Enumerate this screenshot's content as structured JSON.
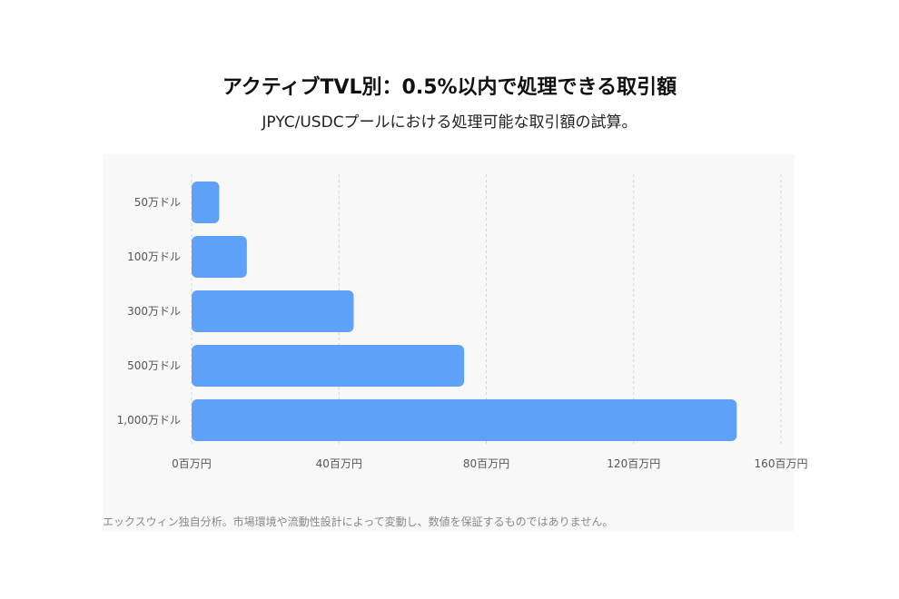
{
  "header": {
    "title": "アクティブTVL別：0.5%以内で処理できる取引額",
    "subtitle": "JPYC/USDCプールにおける処理可能な取引額の試算。"
  },
  "footnote": "エックスウィン独自分析。市場環境や流動性設計によって変動し、数値を保証するものではありません。",
  "colors": {
    "bar": "#5ea1f8",
    "grid": "#d6d6d6",
    "tick_text": "#555555"
  },
  "chart_data": {
    "type": "bar",
    "orientation": "horizontal",
    "categories": [
      "50万ドル",
      "100万ドル",
      "300万ドル",
      "500万ドル",
      "1,000万ドル"
    ],
    "values": [
      7.5,
      15,
      44,
      74,
      148
    ],
    "xlim": [
      0,
      160
    ],
    "xticks": [
      0,
      40,
      80,
      120,
      160
    ],
    "xtick_labels": [
      "0百万円",
      "40百万円",
      "80百万円",
      "120百万円",
      "160百万円"
    ],
    "grid": "vertical dashed"
  }
}
